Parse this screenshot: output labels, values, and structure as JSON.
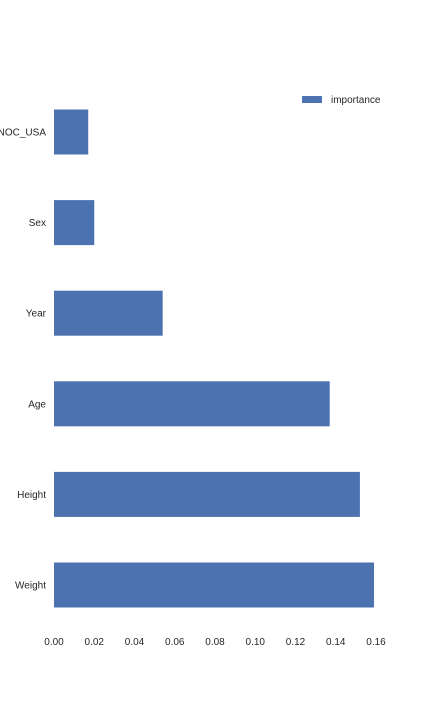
{
  "chart_data": {
    "type": "bar",
    "orientation": "horizontal",
    "categories": [
      "Weight",
      "Height",
      "Age",
      "Year",
      "Sex",
      "NOC_USA"
    ],
    "series": [
      {
        "name": "importance",
        "values": [
          0.159,
          0.152,
          0.137,
          0.054,
          0.02,
          0.017
        ]
      }
    ],
    "xlim": [
      0,
      0.16
    ],
    "xticks": [
      "0.00",
      "0.02",
      "0.04",
      "0.06",
      "0.08",
      "0.10",
      "0.12",
      "0.14",
      "0.16"
    ],
    "title": "",
    "xlabel": "",
    "ylabel": "",
    "grid": false,
    "legend": "top-right",
    "colors": {
      "bar": "#4c72b0",
      "text": "#262626",
      "background": "#ffffff"
    }
  }
}
